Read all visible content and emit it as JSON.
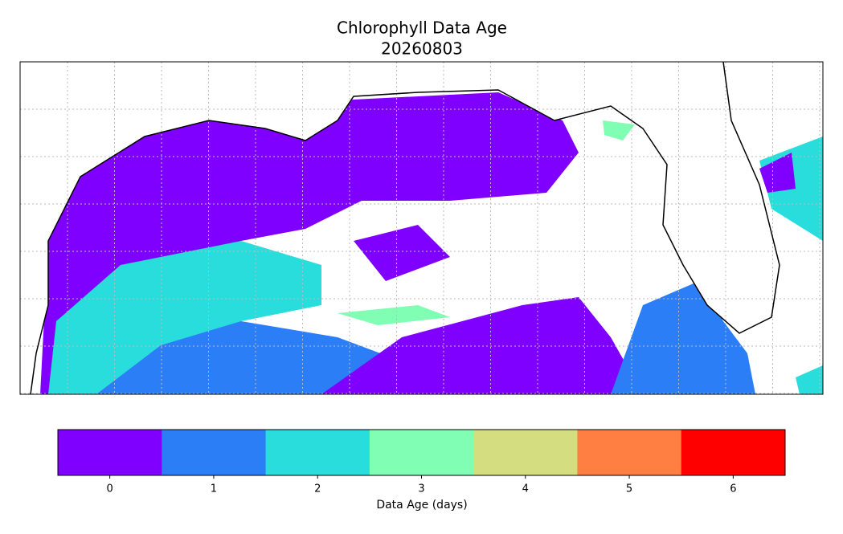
{
  "title": "Chlorophyll Data Age",
  "subtitle": "20260803",
  "colorbar": {
    "ticks": [
      0,
      1,
      2,
      3,
      4,
      5,
      6
    ],
    "colors": [
      "#8000ff",
      "#2c7ef7",
      "#2adddd",
      "#80ffb4",
      "#d4dd80",
      "#ff7e41",
      "#ff0000"
    ],
    "label": "Data Age (days)"
  }
}
